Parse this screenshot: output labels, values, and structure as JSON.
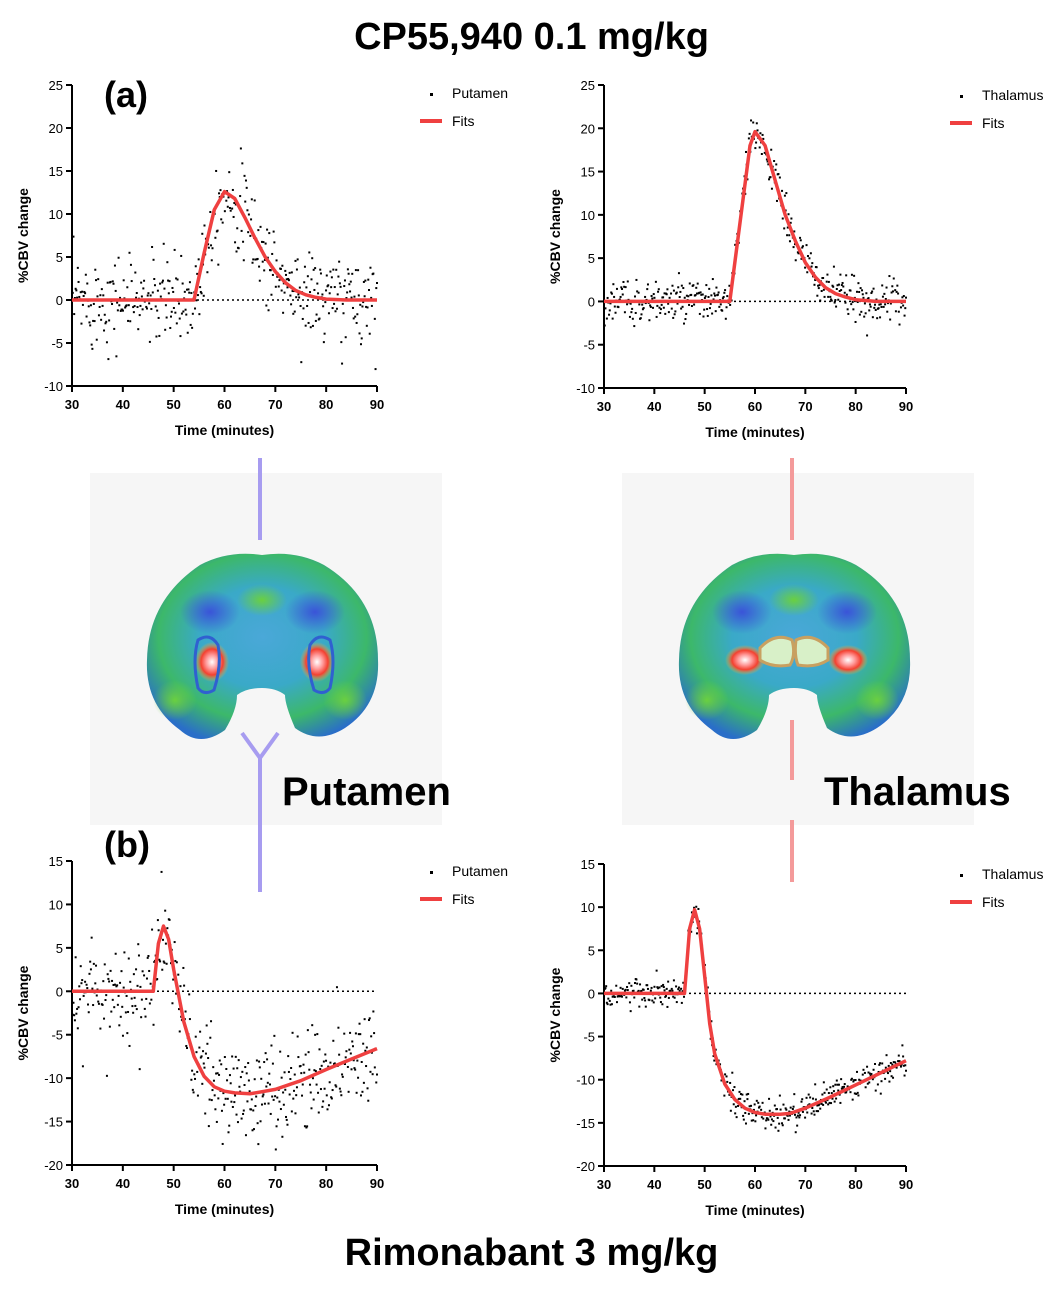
{
  "titles": {
    "top": "CP55,940 0.1 mg/kg",
    "bottom": "Rimonabant 3 mg/kg"
  },
  "panel_labels": {
    "a": "(a)",
    "b": "(b)"
  },
  "region_labels": {
    "putamen": "Putamen",
    "thalamus": "Thalamus"
  },
  "colors": {
    "fit": "#ef4040",
    "scatter": "#000000",
    "putamen_line": "#a79cf0",
    "thalamus_line": "#f49a9a",
    "panel_bg": "#f6f6f6"
  },
  "chart_data": [
    {
      "id": "a-putamen",
      "type": "scatter",
      "xlabel": "Time (minutes)",
      "ylabel": "%CBV change",
      "xlim": [
        30,
        90
      ],
      "ylim": [
        -10,
        25
      ],
      "xticks": [
        30,
        40,
        50,
        60,
        70,
        80,
        90
      ],
      "yticks": [
        -10,
        -5,
        0,
        5,
        10,
        15,
        20,
        25
      ],
      "legend": {
        "scatter_label": "Putamen",
        "fit_label": "Fits",
        "position": "top-right"
      },
      "fit": {
        "x": [
          30,
          54,
          56,
          58,
          60,
          62,
          64,
          66,
          68,
          70,
          72,
          74,
          76,
          78,
          80,
          84,
          90
        ],
        "y": [
          0,
          0,
          5.5,
          10.5,
          12.6,
          11.8,
          9.6,
          7.2,
          5.0,
          3.3,
          2.0,
          1.1,
          0.6,
          0.3,
          0.1,
          0,
          0
        ]
      },
      "noise": 2.6
    },
    {
      "id": "a-thalamus",
      "type": "scatter",
      "xlabel": "Time (minutes)",
      "ylabel": "%CBV change",
      "xlim": [
        30,
        90
      ],
      "ylim": [
        -10,
        25
      ],
      "xticks": [
        30,
        40,
        50,
        60,
        70,
        80,
        90
      ],
      "yticks": [
        -10,
        -5,
        0,
        5,
        10,
        15,
        20,
        25
      ],
      "legend": {
        "scatter_label": "Thalamus",
        "fit_label": "Fits",
        "position": "top-right"
      },
      "fit": {
        "x": [
          30,
          55,
          57,
          59,
          60,
          62,
          64,
          66,
          68,
          70,
          72,
          74,
          76,
          78,
          80,
          84,
          90
        ],
        "y": [
          0,
          0,
          9,
          18,
          19.6,
          18,
          14,
          10,
          7,
          4.5,
          2.8,
          1.6,
          0.9,
          0.5,
          0.2,
          0,
          0
        ]
      },
      "noise": 1.2
    },
    {
      "id": "b-putamen",
      "type": "scatter",
      "xlabel": "Time (minutes)",
      "ylabel": "%CBV change",
      "xlim": [
        30,
        90
      ],
      "ylim": [
        -20,
        15
      ],
      "xticks": [
        30,
        40,
        50,
        60,
        70,
        80,
        90
      ],
      "yticks": [
        -20,
        -15,
        -10,
        -5,
        0,
        5,
        10,
        15
      ],
      "legend": {
        "scatter_label": "Putamen",
        "fit_label": "Fits",
        "position": "top-right"
      },
      "fit": {
        "x": [
          30,
          46,
          47,
          48,
          49,
          50,
          52,
          54,
          56,
          58,
          60,
          62,
          65,
          70,
          75,
          80,
          85,
          90
        ],
        "y": [
          0,
          0,
          5.5,
          7.5,
          6.0,
          2.5,
          -3.5,
          -7.5,
          -9.8,
          -11.0,
          -11.5,
          -11.7,
          -11.8,
          -11.3,
          -10.3,
          -9.0,
          -7.8,
          -6.6
        ]
      },
      "noise": 2.8
    },
    {
      "id": "b-thalamus",
      "type": "scatter",
      "xlabel": "Time (minutes)",
      "ylabel": "%CBV change",
      "xlim": [
        30,
        90
      ],
      "ylim": [
        -20,
        15
      ],
      "xticks": [
        30,
        40,
        50,
        60,
        70,
        80,
        90
      ],
      "yticks": [
        -20,
        -15,
        -10,
        -5,
        0,
        5,
        10,
        15
      ],
      "legend": {
        "scatter_label": "Thalamus",
        "fit_label": "Fits",
        "position": "top-right"
      },
      "fit": {
        "x": [
          30,
          46,
          47,
          48,
          49,
          50,
          51,
          52,
          54,
          56,
          58,
          60,
          62,
          65,
          67,
          70,
          75,
          80,
          85,
          90
        ],
        "y": [
          0,
          0,
          7.5,
          9.7,
          7.5,
          2.0,
          -3.5,
          -7.0,
          -10.5,
          -12.3,
          -13.3,
          -13.8,
          -14.0,
          -14.0,
          -13.9,
          -13.3,
          -12.0,
          -10.6,
          -9.2,
          -7.8
        ]
      },
      "noise": 0.9
    }
  ]
}
